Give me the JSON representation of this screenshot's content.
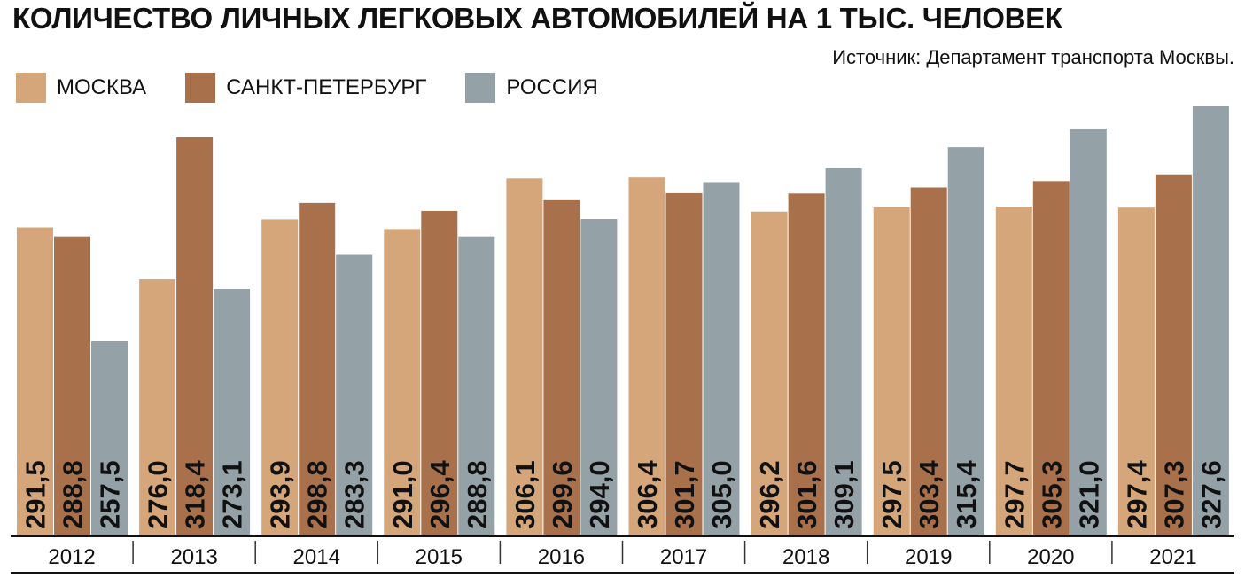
{
  "title": "КОЛИЧЕСТВО ЛИЧНЫХ ЛЕГКОВЫХ АВТОМОБИЛЕЙ НА 1 ТЫС. ЧЕЛОВЕК",
  "source": "Источник: Департамент транспорта Москвы.",
  "colors": {
    "moscow": "#d6a67b",
    "spb": "#a8704b",
    "russia": "#94a1a7"
  },
  "chart_data": {
    "type": "bar",
    "title": "КОЛИЧЕСТВО ЛИЧНЫХ ЛЕГКОВЫХ АВТОМОБИЛЕЙ НА 1 ТЫС. ЧЕЛОВЕК",
    "categories": [
      "2012",
      "2013",
      "2014",
      "2015",
      "2016",
      "2017",
      "2018",
      "2019",
      "2020",
      "2021"
    ],
    "series": [
      {
        "name": "МОСКВА",
        "color": "#d6a67b",
        "values": [
          291.5,
          276.0,
          293.9,
          291.0,
          306.1,
          306.4,
          296.2,
          297.5,
          297.7,
          297.4
        ],
        "labels": [
          "291,5",
          "276,0",
          "293,9",
          "291,0",
          "306,1",
          "306,4",
          "296,2",
          "297,5",
          "297,7",
          "297,4"
        ]
      },
      {
        "name": "САНКТ-ПЕТЕРБУРГ",
        "color": "#a8704b",
        "values": [
          288.8,
          318.4,
          298.8,
          296.4,
          299.6,
          301.7,
          301.6,
          303.4,
          305.3,
          307.3
        ],
        "labels": [
          "288,8",
          "318,4",
          "298,8",
          "296,4",
          "299,6",
          "301,7",
          "301,6",
          "303,4",
          "305,3",
          "307,3"
        ]
      },
      {
        "name": "РОССИЯ",
        "color": "#94a1a7",
        "values": [
          257.5,
          273.1,
          283.3,
          288.8,
          294.0,
          305.0,
          309.1,
          315.4,
          321.0,
          327.6
        ],
        "labels": [
          "257,5",
          "273,1",
          "283,3",
          "288,8",
          "294,0",
          "305,0",
          "309,1",
          "315,4",
          "321,0",
          "327,6"
        ]
      }
    ],
    "legend": "top-left",
    "grid": false
  }
}
